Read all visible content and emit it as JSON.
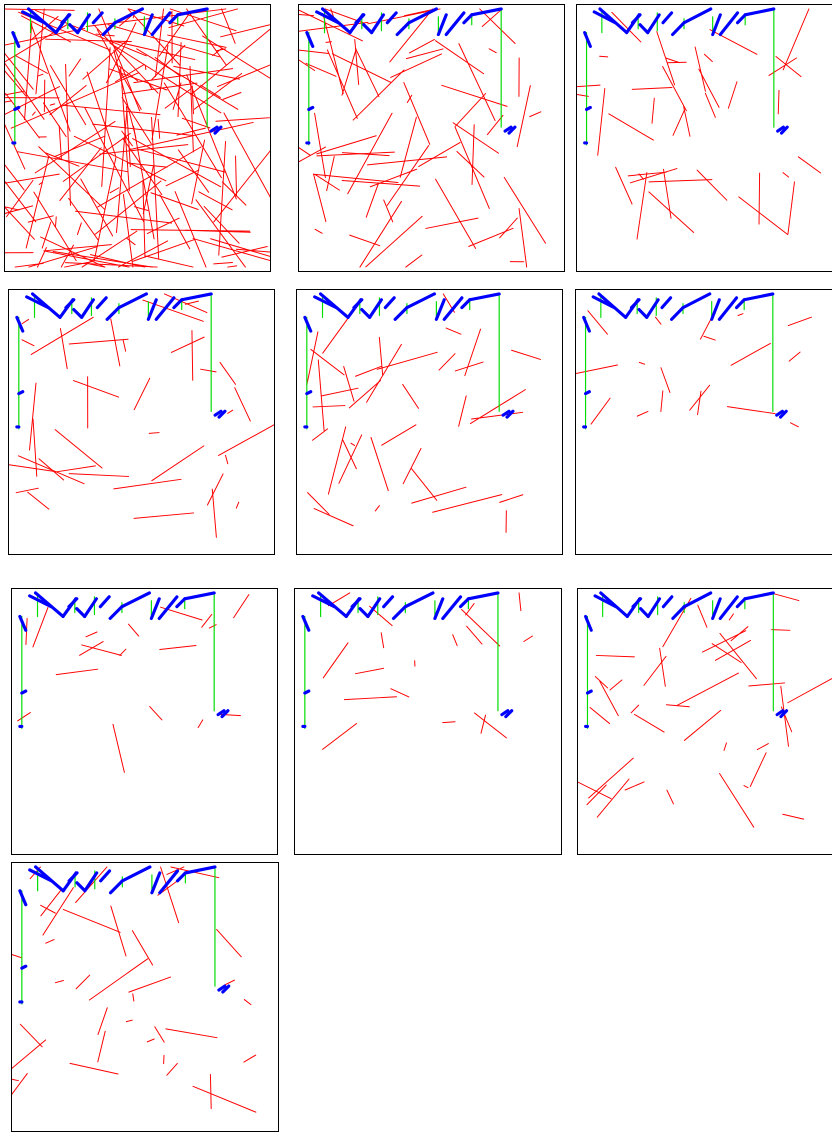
{
  "figure": {
    "panel_count": 10,
    "colors": {
      "structure": "#0000ff",
      "support": "#00dd00",
      "segments": "#ff0000",
      "frame": "#000000",
      "background": "#ffffff"
    }
  },
  "panels": [
    {
      "id": "p1",
      "segment_density": "very-high"
    },
    {
      "id": "p2",
      "segment_density": "high"
    },
    {
      "id": "p3",
      "segment_density": "medium"
    },
    {
      "id": "p4",
      "segment_density": "medium"
    },
    {
      "id": "p5",
      "segment_density": "medium"
    },
    {
      "id": "p6",
      "segment_density": "low"
    },
    {
      "id": "p7",
      "segment_density": "low"
    },
    {
      "id": "p8",
      "segment_density": "low"
    },
    {
      "id": "p9",
      "segment_density": "medium"
    },
    {
      "id": "p10",
      "segment_density": "medium"
    }
  ]
}
